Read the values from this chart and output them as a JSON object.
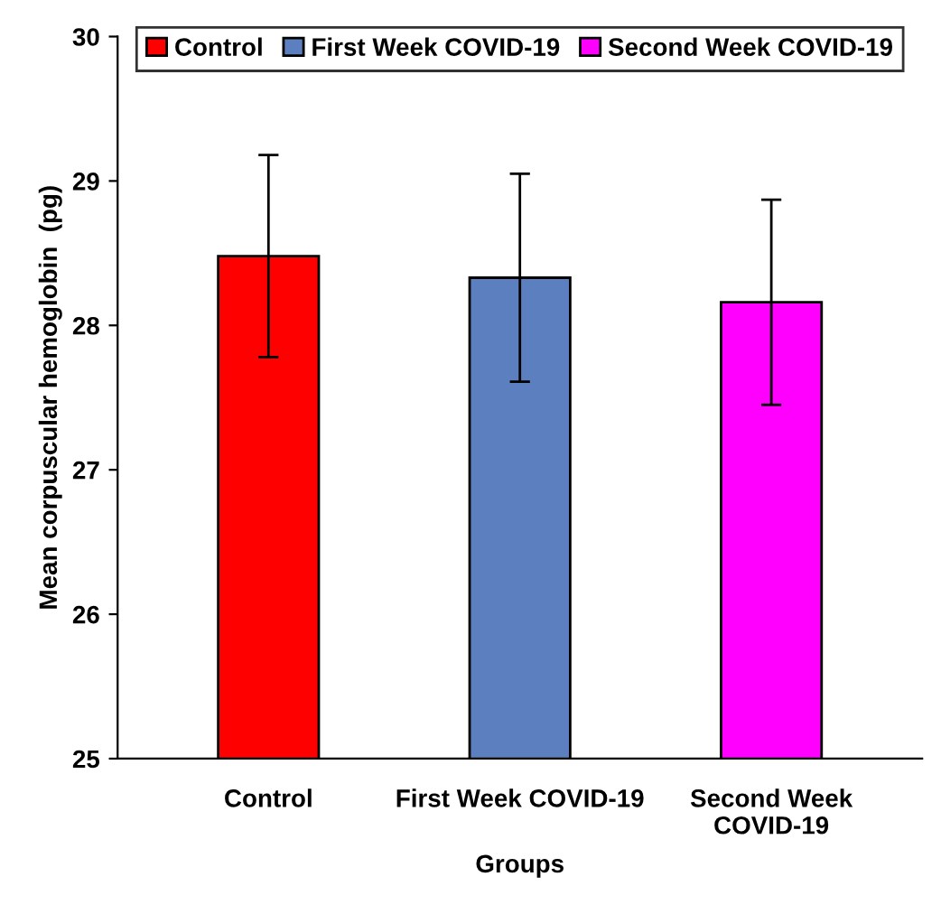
{
  "chart_data": {
    "type": "bar",
    "ylabel": "Mean corpuscular hemoglobin  (pg)",
    "xlabel": "Groups",
    "categories": [
      "Control",
      "First Week COVID-19",
      "Second Week COVID-19"
    ],
    "series": [
      {
        "name": "Control",
        "color": "#ff0000",
        "values": [
          28.48,
          null,
          null
        ],
        "errors": [
          0.7,
          null,
          null
        ]
      },
      {
        "name": "First Week COVID-19",
        "color": "#5b7fbf",
        "values": [
          null,
          28.33,
          null
        ],
        "errors": [
          null,
          0.72,
          null
        ]
      },
      {
        "name": "Second Week COVID-19",
        "color": "#ff00ff",
        "values": [
          null,
          null,
          28.16
        ],
        "errors": [
          null,
          null,
          0.71
        ]
      }
    ],
    "ylim": [
      25,
      30
    ],
    "yticks": [
      25,
      26,
      27,
      28,
      29,
      30
    ],
    "grid": false,
    "legend": "top"
  }
}
